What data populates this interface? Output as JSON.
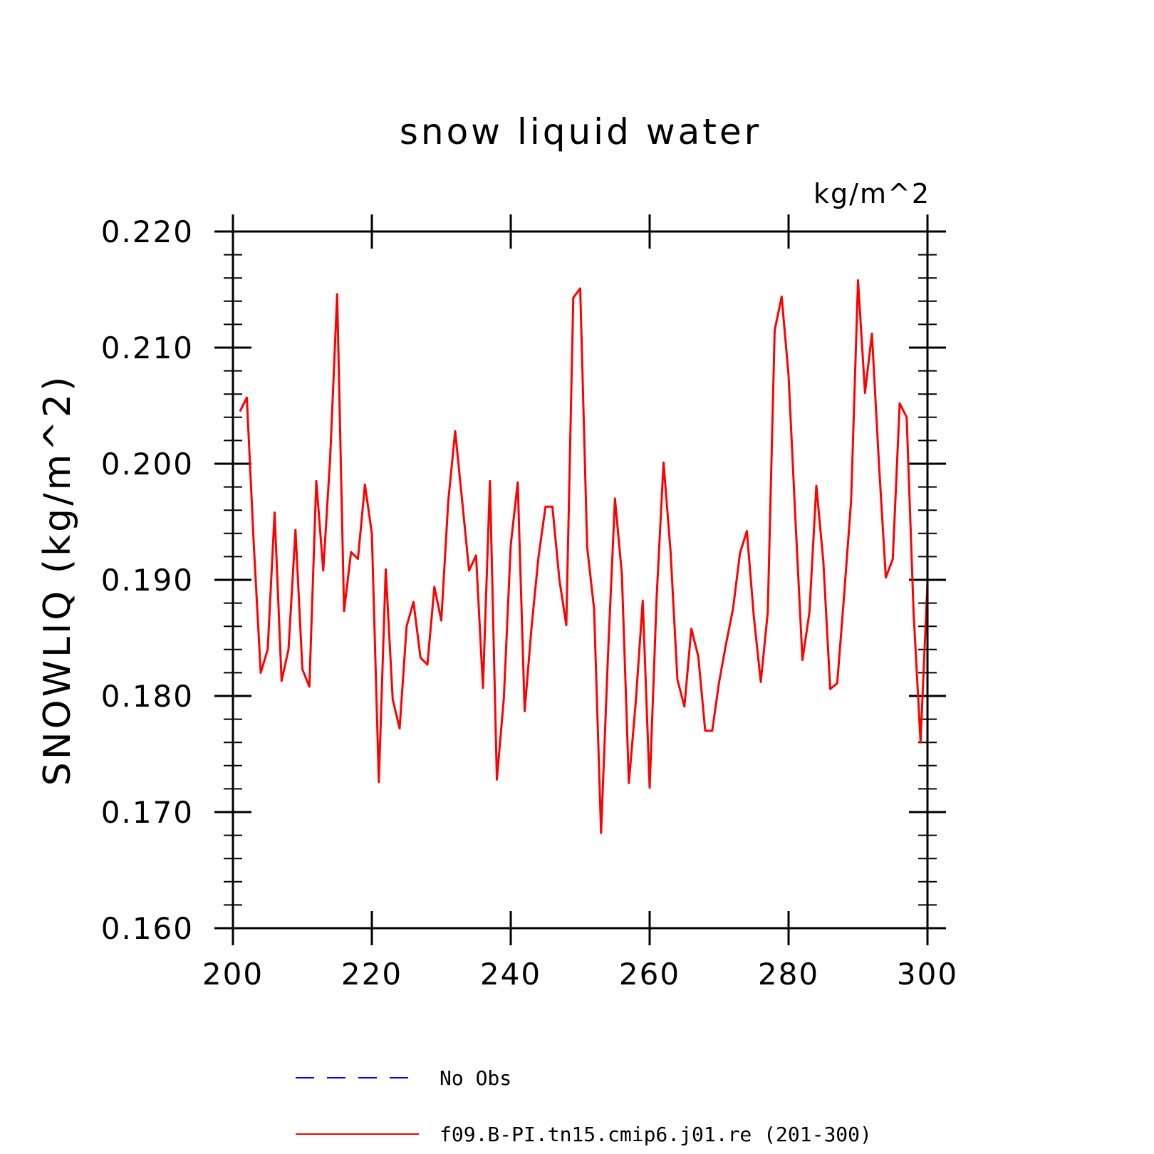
{
  "chart_data": {
    "type": "line",
    "title": "snow liquid water",
    "units": "kg/m^2",
    "ylabel": "SNOWLIQ (kg/m^2)",
    "xlabel": "",
    "xlim": [
      200,
      300
    ],
    "ylim": [
      0.16,
      0.22
    ],
    "x_ticks": [
      200,
      220,
      240,
      260,
      280,
      300
    ],
    "x_tick_labels": [
      "200",
      "220",
      "240",
      "260",
      "280",
      "300"
    ],
    "y_ticks": [
      0.16,
      0.17,
      0.18,
      0.19,
      0.2,
      0.21,
      0.22
    ],
    "y_tick_labels": [
      "0.160",
      "0.170",
      "0.180",
      "0.190",
      "0.200",
      "0.210",
      "0.220"
    ],
    "legend": [
      {
        "label": "No Obs",
        "color": "#0000ff",
        "style": "dashed"
      },
      {
        "label": "f09.B-PI.tn15.cmip6.j01.re (201-300)",
        "color": "#ff0000",
        "style": "solid"
      }
    ],
    "series": [
      {
        "name": "f09.B-PI.tn15.cmip6.j01.re (201-300)",
        "color": "#ff0000",
        "x": [
          201,
          202,
          203,
          204,
          205,
          206,
          207,
          208,
          209,
          210,
          211,
          212,
          213,
          214,
          215,
          216,
          217,
          218,
          219,
          220,
          221,
          222,
          223,
          224,
          225,
          226,
          227,
          228,
          229,
          230,
          231,
          232,
          233,
          234,
          235,
          236,
          237,
          238,
          239,
          240,
          241,
          242,
          243,
          244,
          245,
          246,
          247,
          248,
          249,
          250,
          251,
          252,
          253,
          254,
          255,
          256,
          257,
          258,
          259,
          260,
          261,
          262,
          263,
          264,
          265,
          266,
          267,
          268,
          269,
          270,
          271,
          272,
          273,
          274,
          275,
          276,
          277,
          278,
          279,
          280,
          281,
          282,
          283,
          284,
          285,
          286,
          287,
          288,
          289,
          290,
          291,
          292,
          293,
          294,
          295,
          296,
          297,
          298,
          299,
          300
        ],
        "y": [
          0.2045,
          0.2057,
          0.193,
          0.182,
          0.184,
          0.1958,
          0.1813,
          0.184,
          0.1943,
          0.1823,
          0.1808,
          0.1985,
          0.1908,
          0.2005,
          0.2146,
          0.1873,
          0.1924,
          0.1918,
          0.1982,
          0.194,
          0.1726,
          0.1909,
          0.1797,
          0.1772,
          0.186,
          0.1881,
          0.1833,
          0.1827,
          0.1894,
          0.1865,
          0.1968,
          0.2028,
          0.1968,
          0.1908,
          0.1921,
          0.1807,
          0.1985,
          0.1728,
          0.1798,
          0.193,
          0.1984,
          0.1787,
          0.186,
          0.192,
          0.1963,
          0.1963,
          0.19,
          0.1861,
          0.2143,
          0.2151,
          0.1928,
          0.1875,
          0.1682,
          0.1835,
          0.197,
          0.1905,
          0.1725,
          0.1795,
          0.1882,
          0.1721,
          0.1885,
          0.2001,
          0.1925,
          0.1814,
          0.1791,
          0.1858,
          0.1834,
          0.177,
          0.177,
          0.1812,
          0.1845,
          0.1875,
          0.1923,
          0.1942,
          0.1868,
          0.1812,
          0.1872,
          0.2115,
          0.2144,
          0.2076,
          0.195,
          0.1831,
          0.1872,
          0.1981,
          0.1916,
          0.1806,
          0.1811,
          0.1887,
          0.1968,
          0.2158,
          0.2061,
          0.2112,
          0.2001,
          0.1902,
          0.1918,
          0.2052,
          0.204,
          0.1872,
          0.176,
          0.1898
        ]
      }
    ]
  }
}
